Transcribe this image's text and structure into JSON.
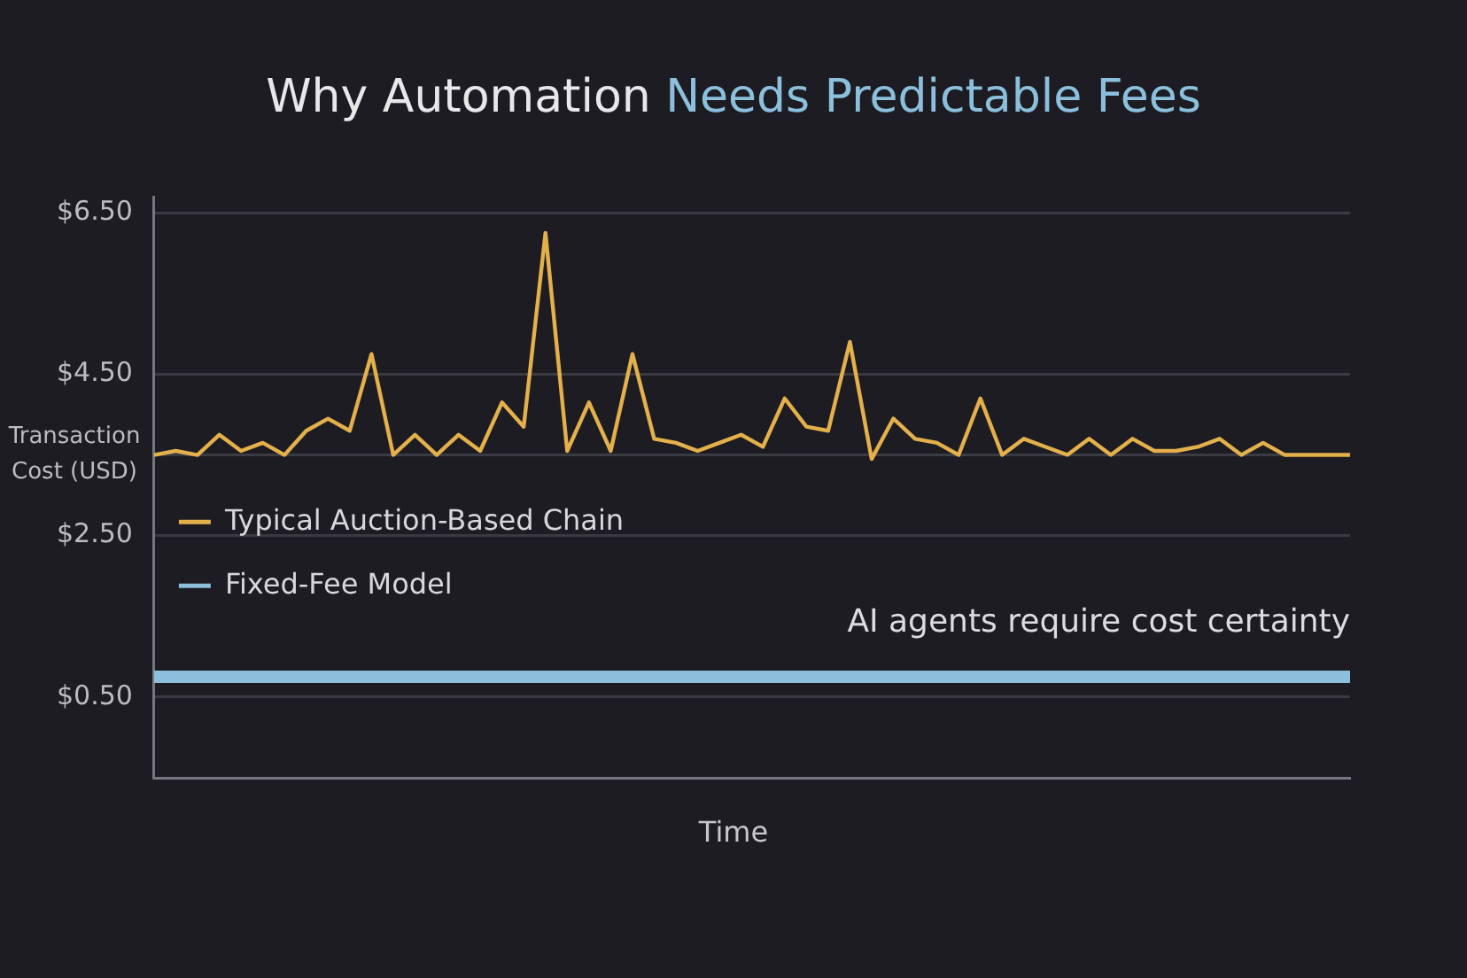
{
  "chart_data": {
    "type": "line",
    "title": "Why Automation Needs Predictable Fees",
    "xlabel": "Time",
    "ylabel": "Transaction Cost (USD)",
    "categories": [
      null,
      null,
      null,
      null,
      null,
      null,
      null,
      null,
      null,
      null,
      null,
      null,
      null,
      null,
      null,
      null,
      null,
      null,
      null,
      null,
      null,
      null,
      null,
      null,
      null,
      null,
      null,
      null,
      null,
      null,
      null,
      null,
      null,
      null,
      null,
      null,
      null,
      null,
      null,
      null,
      null,
      null,
      null,
      null,
      null,
      null,
      null,
      null,
      null,
      null,
      null,
      null,
      null,
      null,
      null,
      null
    ],
    "series": [
      {
        "name": "Typical Auction-Based Chain",
        "color": "#e3b04b",
        "values": [
          3.5,
          3.55,
          3.5,
          3.75,
          3.55,
          3.65,
          3.5,
          3.8,
          3.95,
          3.8,
          4.75,
          3.5,
          3.75,
          3.5,
          3.75,
          3.55,
          4.15,
          3.85,
          6.25,
          3.55,
          4.15,
          3.55,
          4.75,
          3.7,
          3.65,
          3.55,
          3.65,
          3.75,
          3.6,
          4.2,
          3.85,
          3.8,
          4.9,
          3.45,
          3.95,
          3.7,
          3.65,
          3.5,
          4.2,
          3.5,
          3.7,
          3.6,
          3.5,
          3.7,
          3.5,
          3.7,
          3.55,
          3.55,
          3.6,
          3.7,
          3.5,
          3.65,
          3.5,
          3.5,
          3.5,
          3.5
        ]
      },
      {
        "name": "Fixed-Fee Model",
        "color": "#8bbfdc",
        "values": [
          0.75,
          0.75,
          0.75,
          0.75,
          0.75,
          0.75,
          0.75,
          0.75,
          0.75,
          0.75,
          0.75,
          0.75,
          0.75,
          0.75,
          0.75,
          0.75,
          0.75,
          0.75,
          0.75,
          0.75,
          0.75,
          0.75,
          0.75,
          0.75,
          0.75,
          0.75,
          0.75,
          0.75,
          0.75,
          0.75,
          0.75,
          0.75,
          0.75,
          0.75,
          0.75,
          0.75,
          0.75,
          0.75,
          0.75,
          0.75,
          0.75,
          0.75,
          0.75,
          0.75,
          0.75,
          0.75,
          0.75,
          0.75,
          0.75,
          0.75,
          0.75,
          0.75,
          0.75,
          0.75,
          0.75,
          0.75
        ]
      }
    ],
    "ylim": [
      -0.5,
      6.7
    ],
    "yticks": [
      {
        "value": 0.5,
        "label": "$0.50"
      },
      {
        "value": 2.5,
        "label": "$2.50"
      },
      {
        "value": 3.5,
        "label": null
      },
      {
        "value": 4.5,
        "label": "$4.50"
      },
      {
        "value": 6.5,
        "label": "$6.50"
      }
    ],
    "grid": "y",
    "tick_labels": "y",
    "legend": "left",
    "marker": "none",
    "line_style": "solid",
    "annotations": [
      "AI agents require cost certainty"
    ]
  }
}
